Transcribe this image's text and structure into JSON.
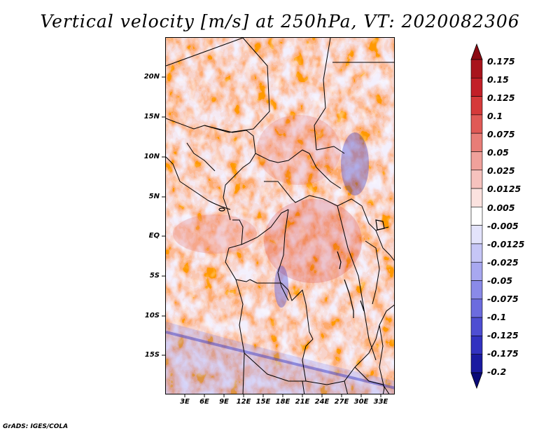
{
  "title": "Vertical velocity [m/s] at 250hPa, VT: 2020082306",
  "credit": "GrADS: IGES/COLA",
  "map": {
    "lat_labels": [
      "20N",
      "15N",
      "10N",
      "5N",
      "EQ",
      "5S",
      "10S",
      "15S"
    ],
    "lon_labels": [
      "3E",
      "6E",
      "9E",
      "12E",
      "15E",
      "18E",
      "21E",
      "24E",
      "27E",
      "30E",
      "33E"
    ]
  },
  "colorbar": {
    "labels": [
      "0.175",
      "0.15",
      "0.125",
      "0.1",
      "0.075",
      "0.05",
      "0.025",
      "0.0125",
      "0.005",
      "-0.005",
      "-0.0125",
      "-0.025",
      "-0.05",
      "-0.075",
      "-0.1",
      "-0.125",
      "-0.175",
      "-0.2"
    ],
    "colors": [
      "#8b0a12",
      "#a8141c",
      "#c22028",
      "#d53a3a",
      "#e05a56",
      "#e87d77",
      "#f0a19b",
      "#f6c2be",
      "#fbe2df",
      "#ffffff",
      "#e3e3fb",
      "#c6c6f6",
      "#a8a8f0",
      "#8a8ae8",
      "#6c6cde",
      "#4e4ed2",
      "#3232c0",
      "#1a1aa0",
      "#0a0a78"
    ]
  }
}
